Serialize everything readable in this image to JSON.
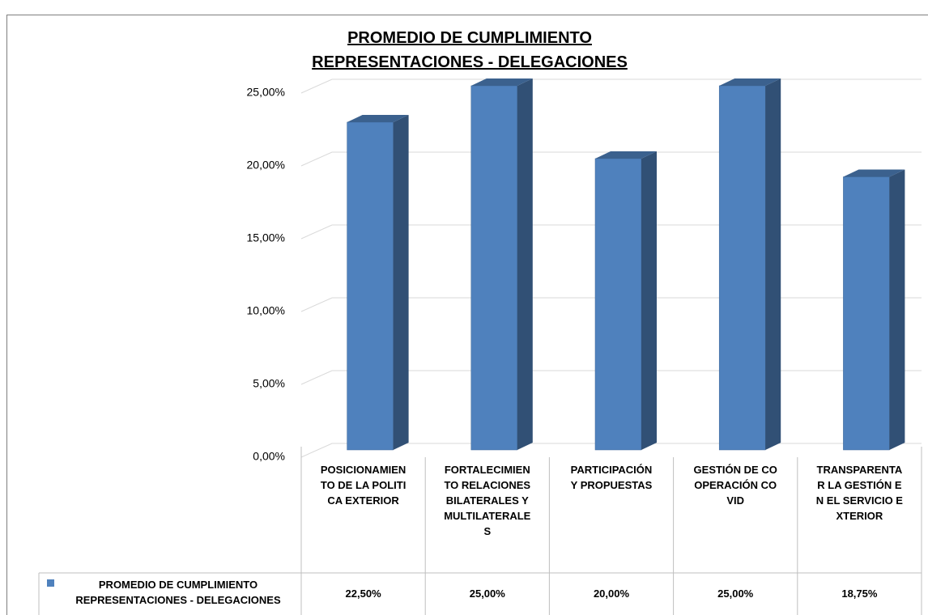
{
  "chart_data": {
    "type": "bar3d",
    "title": "PROMEDIO DE CUMPLIMIENTO REPRESENTACIONES - DELEGACIONES",
    "categories": [
      "POSICIONAMIENTO DE LA POLITICA EXTERIOR",
      "FORTALECIMIENTO RELACIONES BILATERALES Y MULTILATERALES",
      "PARTICIPACIÓN Y PROPUESTAS",
      "GESTIÓN DE COOPERACIÓN COVID",
      "TRANSPARENTAR LA GESTIÓN EN EL SERVICIO EXTERIOR"
    ],
    "series": [
      {
        "name": "PROMEDIO DE CUMPLIMIENTO REPRESENTACIONES - DELEGACIONES",
        "color": "#4f81bd",
        "values": [
          22.5,
          25,
          20,
          25,
          18.75
        ],
        "value_labels": [
          "22,50%",
          "25,00%",
          "20,00%",
          "25,00%",
          "18,75%"
        ]
      }
    ],
    "ylim": [
      0,
      25
    ],
    "yticks": [
      {
        "value": 0,
        "label": "0,00%"
      },
      {
        "value": 5,
        "label": "5,00%"
      },
      {
        "value": 10,
        "label": "10,00%"
      },
      {
        "value": 15,
        "label": "15,00%"
      },
      {
        "value": 20,
        "label": "20,00%"
      },
      {
        "value": 25,
        "label": "25,00%"
      }
    ],
    "grid": true
  }
}
